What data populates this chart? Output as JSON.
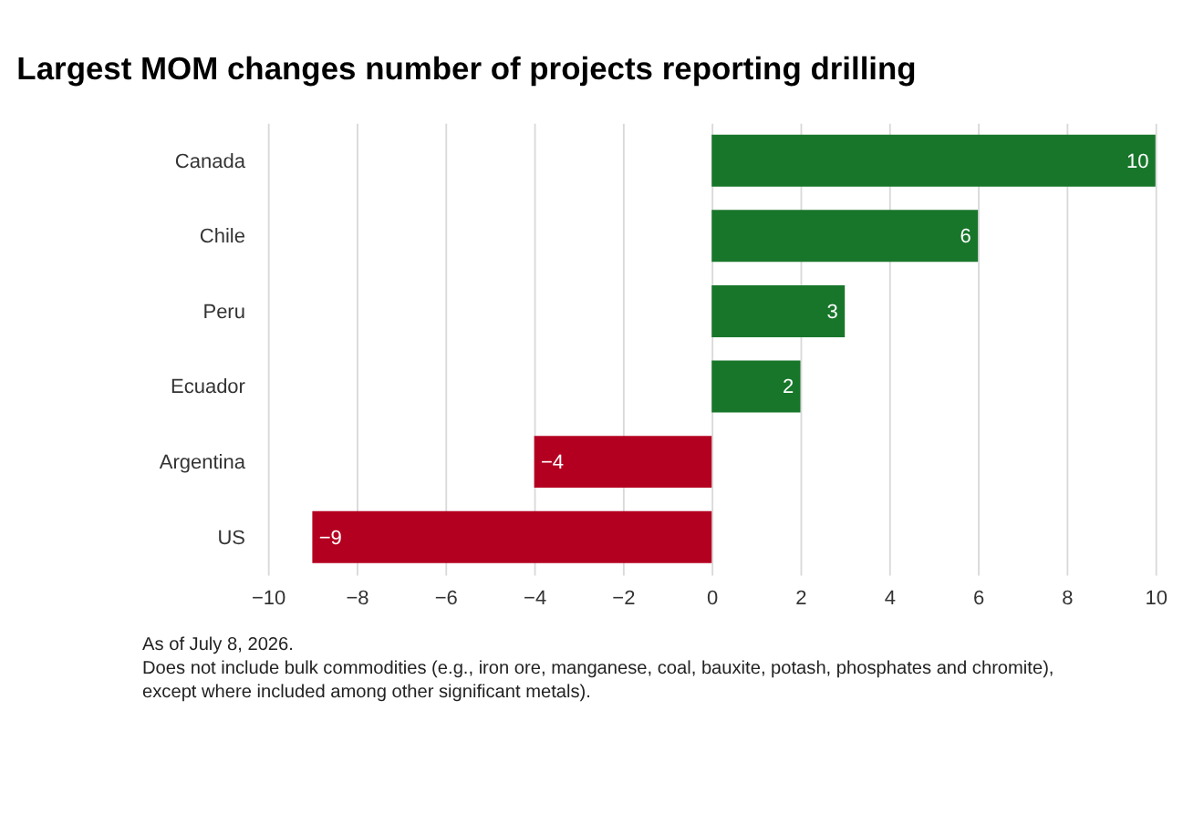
{
  "chart_data": {
    "type": "bar",
    "orientation": "horizontal",
    "title": "Largest MOM changes number of projects reporting drilling",
    "categories": [
      "Canada",
      "Chile",
      "Peru",
      "Ecuador",
      "Argentina",
      "US"
    ],
    "values": [
      10,
      6,
      3,
      2,
      -4,
      -9
    ],
    "colors": [
      "#18762b",
      "#18762b",
      "#18762b",
      "#18762b",
      "#b40020",
      "#b40020"
    ],
    "xlim": [
      -10,
      10
    ],
    "xticks": [
      -10,
      -8,
      -6,
      -4,
      -2,
      0,
      2,
      4,
      6,
      8,
      10
    ],
    "grid": "x",
    "data_labels": true,
    "annotations": [
      "As of July 8, 2026.",
      "Does not include bulk commodities (e.g., iron ore, manganese, coal, bauxite, potash, phosphates and chromite),",
      "except where included among other significant metals)."
    ]
  }
}
